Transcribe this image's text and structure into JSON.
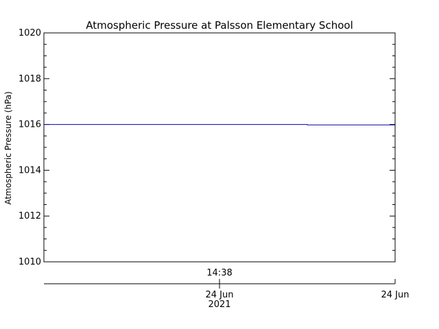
{
  "chart_data": {
    "type": "line",
    "title": "Atmospheric Pressure at Palsson Elementary School",
    "ylabel": "Atmospheric Pressure (hPa)",
    "ylim": [
      1010,
      1020
    ],
    "y_ticks": [
      "1010",
      "1012",
      "1014",
      "1016",
      "1018",
      "1020"
    ],
    "x_time_label": "14:38",
    "x_date_labels": [
      {
        "day": "24 Jun",
        "year": "2021"
      },
      {
        "day": "24 Jun",
        "year": ""
      }
    ],
    "series": [
      {
        "values": [
          1016.0,
          1016.0,
          1015.98,
          1015.98
        ],
        "x_fraction": [
          0.0,
          0.75,
          0.75,
          1.0
        ]
      }
    ],
    "grid": false,
    "colors": {
      "line": "#0000aa",
      "axis": "#000000",
      "background": "#ffffff"
    }
  }
}
